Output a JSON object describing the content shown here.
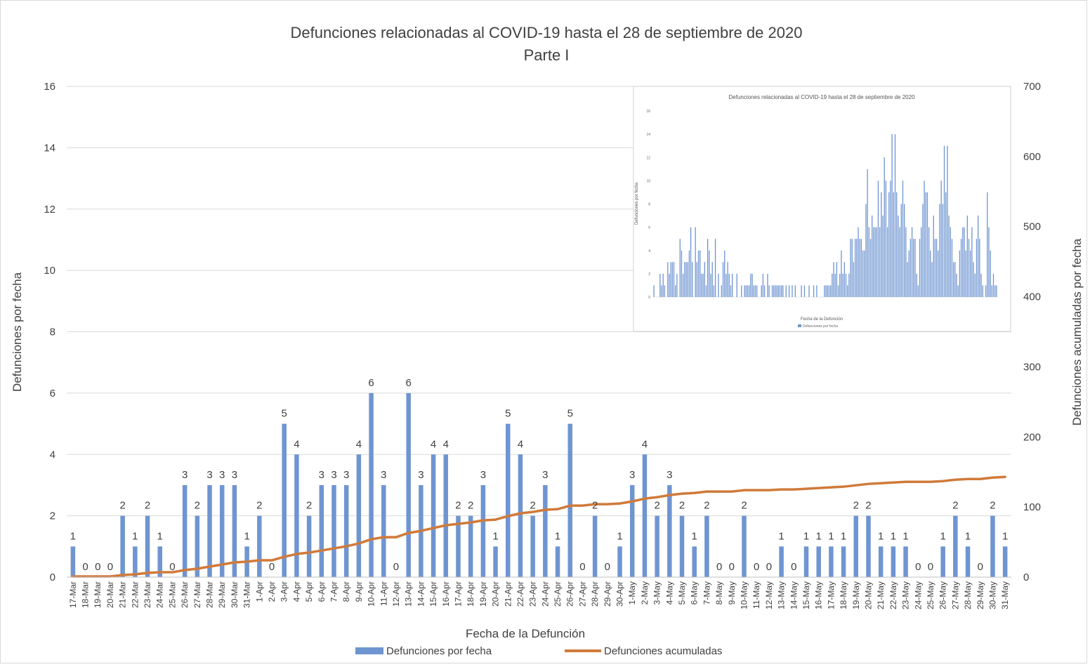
{
  "chart_data": {
    "type": "bar",
    "title": "Defunciones relacionadas al COVID-19 hasta el 28 de septiembre de 2020",
    "subtitle": "Parte I",
    "xlabel": "Fecha de la Defunción",
    "ylabel": "Defunciones por fecha",
    "y2label": "Defunciones acumuladas por fecha",
    "ylim": [
      0,
      16
    ],
    "yticks": [
      0,
      2,
      4,
      6,
      8,
      10,
      12,
      14,
      16
    ],
    "y2lim": [
      0,
      700
    ],
    "y2ticks": [
      0,
      100,
      200,
      300,
      400,
      500,
      600,
      700
    ],
    "grid": true,
    "legend_position": "bottom",
    "categories": [
      "17-Mar",
      "18-Mar",
      "19-Mar",
      "20-Mar",
      "21-Mar",
      "22-Mar",
      "23-Mar",
      "24-Mar",
      "25-Mar",
      "26-Mar",
      "27-Mar",
      "28-Mar",
      "29-Mar",
      "30-Mar",
      "31-Mar",
      "1-Apr",
      "2-Apr",
      "3-Apr",
      "4-Apr",
      "5-Apr",
      "6-Apr",
      "7-Apr",
      "8-Apr",
      "9-Apr",
      "10-Apr",
      "11-Apr",
      "12-Apr",
      "13-Apr",
      "14-Apr",
      "15-Apr",
      "16-Apr",
      "17-Apr",
      "18-Apr",
      "19-Apr",
      "20-Apr",
      "21-Apr",
      "22-Apr",
      "23-Apr",
      "24-Apr",
      "25-Apr",
      "26-Apr",
      "27-Apr",
      "28-Apr",
      "29-Apr",
      "30-Apr",
      "1-May",
      "2-May",
      "3-May",
      "4-May",
      "5-May",
      "6-May",
      "7-May",
      "8-May",
      "9-May",
      "10-May",
      "11-May",
      "12-May",
      "13-May",
      "14-May",
      "15-May",
      "16-May",
      "17-May",
      "18-May",
      "19-May",
      "20-May",
      "21-May",
      "22-May",
      "23-May",
      "24-May",
      "25-May",
      "26-May",
      "27-May",
      "28-May",
      "29-May",
      "30-May",
      "31-May"
    ],
    "series": [
      {
        "name": "Defunciones por fecha",
        "type": "bar",
        "axis": "left",
        "color": "#6f95d1",
        "values": [
          1,
          0,
          0,
          0,
          2,
          1,
          2,
          1,
          0,
          3,
          2,
          3,
          3,
          3,
          1,
          2,
          0,
          5,
          4,
          2,
          3,
          3,
          3,
          4,
          6,
          3,
          0,
          6,
          3,
          4,
          4,
          2,
          2,
          3,
          1,
          5,
          4,
          2,
          3,
          1,
          5,
          0,
          2,
          0,
          1,
          3,
          4,
          2,
          3,
          2,
          1,
          2,
          0,
          0,
          2,
          0,
          0,
          1,
          0,
          1,
          1,
          1,
          1,
          2,
          2,
          1,
          1,
          1,
          0,
          0,
          1,
          2,
          1,
          0,
          2,
          1
        ]
      },
      {
        "name": "Defunciones acumuladas",
        "type": "line",
        "axis": "right",
        "color": "#d07a3a",
        "values": [
          1,
          1,
          1,
          1,
          3,
          4,
          6,
          7,
          7,
          10,
          12,
          15,
          18,
          21,
          22,
          24,
          24,
          29,
          33,
          35,
          38,
          41,
          44,
          48,
          54,
          57,
          57,
          63,
          66,
          70,
          74,
          76,
          78,
          81,
          82,
          87,
          91,
          93,
          96,
          97,
          102,
          102,
          104,
          104,
          105,
          108,
          112,
          114,
          117,
          119,
          120,
          122,
          122,
          122,
          124,
          124,
          124,
          125,
          125,
          126,
          127,
          128,
          129,
          131,
          133,
          134,
          135,
          136,
          136,
          136,
          137,
          139,
          140,
          140,
          142,
          143
        ]
      }
    ],
    "inset": {
      "title": "Defunciones relacionadas al COVID-19 hasta el 28 de septiembre de 2020",
      "xlabel": "Fecha de la Defunción",
      "ylabel": "Defunciones por fecha",
      "legend": "Defunciones por fecha",
      "ylim": [
        0,
        16
      ],
      "yticks": [
        0,
        2,
        4,
        6,
        8,
        10,
        12,
        14,
        16
      ],
      "values": [
        1,
        0,
        0,
        0,
        2,
        1,
        2,
        1,
        0,
        3,
        2,
        3,
        3,
        3,
        1,
        2,
        0,
        5,
        4,
        2,
        3,
        3,
        3,
        4,
        6,
        3,
        0,
        6,
        3,
        4,
        4,
        2,
        2,
        3,
        1,
        5,
        4,
        2,
        3,
        1,
        5,
        0,
        2,
        0,
        1,
        3,
        4,
        2,
        3,
        2,
        1,
        2,
        0,
        0,
        2,
        0,
        0,
        1,
        0,
        1,
        1,
        1,
        1,
        2,
        2,
        1,
        1,
        1,
        0,
        0,
        1,
        2,
        1,
        0,
        2,
        1,
        0,
        1,
        1,
        1,
        1,
        1,
        1,
        1,
        1,
        0,
        1,
        0,
        1,
        0,
        1,
        0,
        1,
        0,
        0,
        0,
        1,
        0,
        1,
        0,
        0,
        1,
        0,
        0,
        1,
        0,
        1,
        0,
        0,
        0,
        0,
        1,
        1,
        1,
        1,
        1,
        2,
        3,
        2,
        3,
        1,
        2,
        4,
        2,
        3,
        2,
        1,
        2,
        5,
        5,
        3,
        5,
        5,
        6,
        5,
        5,
        4,
        4,
        8,
        11,
        6,
        5,
        7,
        6,
        6,
        6,
        10,
        6,
        9,
        7,
        12,
        10,
        6,
        9,
        10,
        14,
        9,
        14,
        9,
        7,
        6,
        8,
        10,
        8,
        6,
        3,
        4,
        5,
        6,
        5,
        5,
        2,
        1,
        5,
        6,
        8,
        10,
        9,
        9,
        6,
        4,
        3,
        7,
        5,
        5,
        4,
        8,
        10,
        8,
        13,
        9,
        13,
        7,
        6,
        5,
        3,
        3,
        2,
        1,
        4,
        5,
        6,
        6,
        4,
        7,
        5,
        4,
        6,
        3,
        2,
        5,
        7,
        5,
        2,
        1,
        0,
        1,
        9,
        6,
        4,
        1,
        2,
        1,
        1
      ],
      "color": "#6f95d1"
    }
  }
}
